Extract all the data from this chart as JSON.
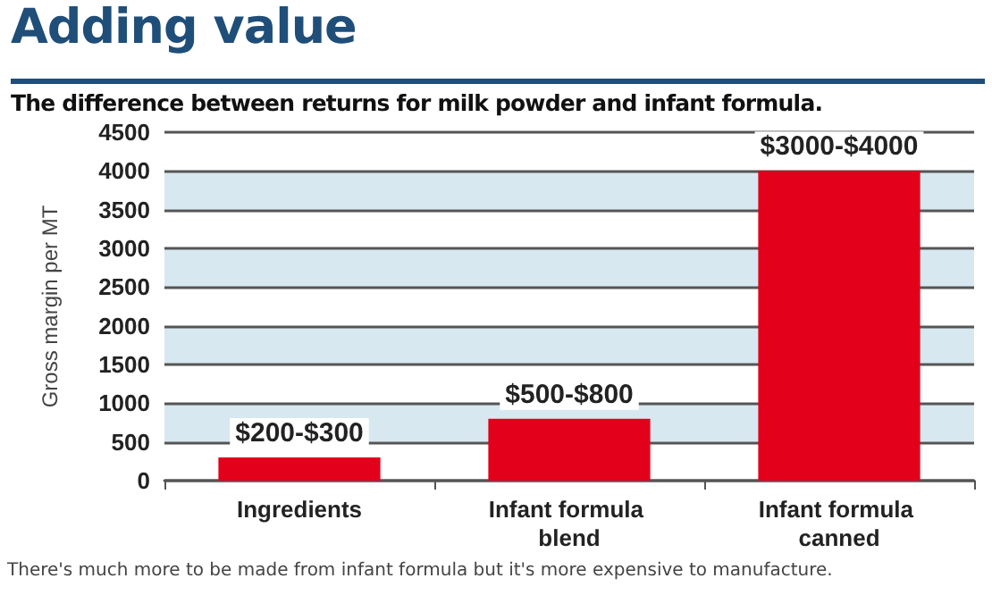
{
  "chart_data": {
    "type": "bar",
    "title": "Adding value",
    "subtitle": "The difference between returns for milk powder and infant formula.",
    "ylabel": "Gross margin per MT",
    "categories": [
      "Ingredients",
      "Infant formula blend",
      "Infant formula canned"
    ],
    "values": [
      300,
      800,
      4000
    ],
    "color": "#e2001a",
    "value_labels": [
      "$200-$300",
      "$500-$800",
      "$3000-$4000"
    ],
    "ylim": [
      0,
      4500
    ],
    "yticks": [
      0,
      500,
      1000,
      1500,
      2000,
      2500,
      3000,
      3500,
      4000,
      4500
    ],
    "grid": "y",
    "annotations": [
      "There's much more to be made from infant formula but it's more expensive to manufacture."
    ]
  }
}
